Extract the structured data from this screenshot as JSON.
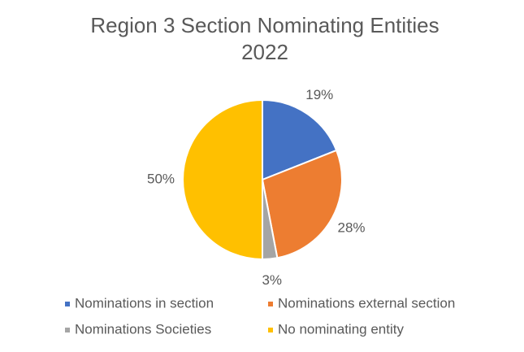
{
  "chart_data": {
    "type": "pie",
    "title": [
      "Region 3 Section Nominating Entities",
      "2022"
    ],
    "categories": [
      "Nominations in section",
      "Nominations external section",
      "Nominations Societies",
      "No nominating entity"
    ],
    "values": [
      19,
      28,
      3,
      50
    ],
    "value_labels": [
      "19%",
      "28%",
      "3%",
      "50%"
    ],
    "colors": [
      "#4472c4",
      "#ed7d31",
      "#a5a5a5",
      "#ffc000"
    ],
    "legend": "bottom"
  }
}
